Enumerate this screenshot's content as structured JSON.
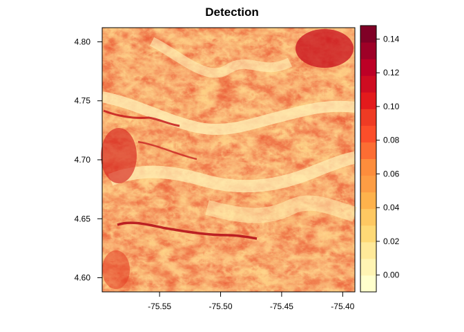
{
  "chart_data": {
    "type": "heatmap",
    "title": "Detection",
    "xlabel": "",
    "ylabel": "",
    "xlim": [
      -75.597,
      -75.39
    ],
    "ylim": [
      4.588,
      4.812
    ],
    "x_ticks": [
      {
        "value": -75.55,
        "label": "-75.55"
      },
      {
        "value": -75.5,
        "label": "-75.50"
      },
      {
        "value": -75.45,
        "label": "-75.45"
      },
      {
        "value": -75.4,
        "label": "-75.40"
      }
    ],
    "y_ticks": [
      {
        "value": 4.6,
        "label": "4.60"
      },
      {
        "value": 4.65,
        "label": "4.65"
      },
      {
        "value": 4.7,
        "label": "4.70"
      },
      {
        "value": 4.75,
        "label": "4.75"
      },
      {
        "value": 4.8,
        "label": "4.80"
      }
    ],
    "colorbar": {
      "range": [
        -0.01,
        0.148
      ],
      "ticks": [
        {
          "value": 0.0,
          "label": "0.00"
        },
        {
          "value": 0.02,
          "label": "0.02"
        },
        {
          "value": 0.04,
          "label": "0.04"
        },
        {
          "value": 0.06,
          "label": "0.06"
        },
        {
          "value": 0.08,
          "label": "0.08"
        },
        {
          "value": 0.1,
          "label": "0.10"
        },
        {
          "value": 0.12,
          "label": "0.12"
        },
        {
          "value": 0.14,
          "label": "0.14"
        }
      ],
      "colors": [
        "#ffffcc",
        "#fff4b3",
        "#ffe999",
        "#fed976",
        "#fec862",
        "#feb24c",
        "#fd9d44",
        "#fd8d3c",
        "#fc6d33",
        "#fc4e2a",
        "#ef3b24",
        "#e31a1c",
        "#cf0c21",
        "#bd0026",
        "#9e0027",
        "#800026"
      ]
    },
    "grid": false,
    "legend": "right"
  }
}
